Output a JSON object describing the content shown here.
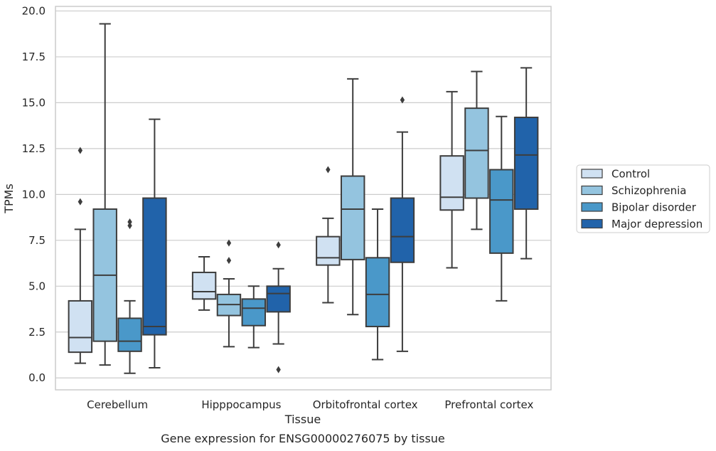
{
  "chart_data": {
    "type": "box",
    "title": "Gene expression for ENSG00000276075 by tissue",
    "xlabel": "Tissue",
    "ylabel": "TPMs",
    "ylim": [
      -0.65,
      20.25
    ],
    "yticks": [
      "0.0",
      "2.5",
      "5.0",
      "7.5",
      "10.0",
      "12.5",
      "15.0",
      "17.5",
      "20.0"
    ],
    "grid": true,
    "legend_position": "right",
    "categories": [
      "Cerebellum",
      "Hipppocampus",
      "Orbitofrontal cortex",
      "Prefrontal cortex"
    ],
    "series": [
      {
        "name": "Control",
        "color": "#d0e1f2",
        "boxes": [
          {
            "whislo": 0.8,
            "q1": 1.4,
            "med": 2.2,
            "q3": 4.2,
            "whishi": 8.1,
            "fliers": [
              9.6,
              12.4
            ]
          },
          {
            "whislo": 3.7,
            "q1": 4.3,
            "med": 4.7,
            "q3": 5.75,
            "whishi": 6.6,
            "fliers": []
          },
          {
            "whislo": 4.1,
            "q1": 6.15,
            "med": 6.55,
            "q3": 7.7,
            "whishi": 8.7,
            "fliers": [
              11.35
            ]
          },
          {
            "whislo": 6.0,
            "q1": 9.15,
            "med": 9.85,
            "q3": 12.1,
            "whishi": 15.6,
            "fliers": []
          }
        ]
      },
      {
        "name": "Schizophrenia",
        "color": "#94c4df",
        "boxes": [
          {
            "whislo": 0.7,
            "q1": 2.0,
            "med": 5.6,
            "q3": 9.2,
            "whishi": 19.3,
            "fliers": []
          },
          {
            "whislo": 1.7,
            "q1": 3.4,
            "med": 4.0,
            "q3": 4.55,
            "whishi": 5.4,
            "fliers": [
              6.4,
              7.35
            ]
          },
          {
            "whislo": 3.45,
            "q1": 6.45,
            "med": 9.2,
            "q3": 11.0,
            "whishi": 16.3,
            "fliers": []
          },
          {
            "whislo": 8.1,
            "q1": 9.8,
            "med": 12.4,
            "q3": 14.7,
            "whishi": 16.7,
            "fliers": []
          }
        ]
      },
      {
        "name": "Bipolar disorder",
        "color": "#4a98c9",
        "boxes": [
          {
            "whislo": 0.25,
            "q1": 1.45,
            "med": 2.0,
            "q3": 3.25,
            "whishi": 4.2,
            "fliers": [
              8.3,
              8.5
            ]
          },
          {
            "whislo": 1.65,
            "q1": 2.85,
            "med": 3.8,
            "q3": 4.3,
            "whishi": 5.0,
            "fliers": []
          },
          {
            "whislo": 1.0,
            "q1": 2.8,
            "med": 4.55,
            "q3": 6.55,
            "whishi": 9.2,
            "fliers": []
          },
          {
            "whislo": 4.2,
            "q1": 6.8,
            "med": 9.7,
            "q3": 11.35,
            "whishi": 14.25,
            "fliers": []
          }
        ]
      },
      {
        "name": "Major depression",
        "color": "#2163aa",
        "boxes": [
          {
            "whislo": 0.55,
            "q1": 2.35,
            "med": 2.8,
            "q3": 9.8,
            "whishi": 14.1,
            "fliers": []
          },
          {
            "whislo": 1.85,
            "q1": 3.6,
            "med": 4.6,
            "q3": 5.0,
            "whishi": 5.95,
            "fliers": [
              0.45,
              7.25
            ]
          },
          {
            "whislo": 1.45,
            "q1": 6.3,
            "med": 7.7,
            "q3": 9.8,
            "whishi": 13.4,
            "fliers": [
              15.15
            ]
          },
          {
            "whislo": 6.5,
            "q1": 9.2,
            "med": 12.15,
            "q3": 14.2,
            "whishi": 16.9,
            "fliers": []
          }
        ]
      }
    ]
  }
}
